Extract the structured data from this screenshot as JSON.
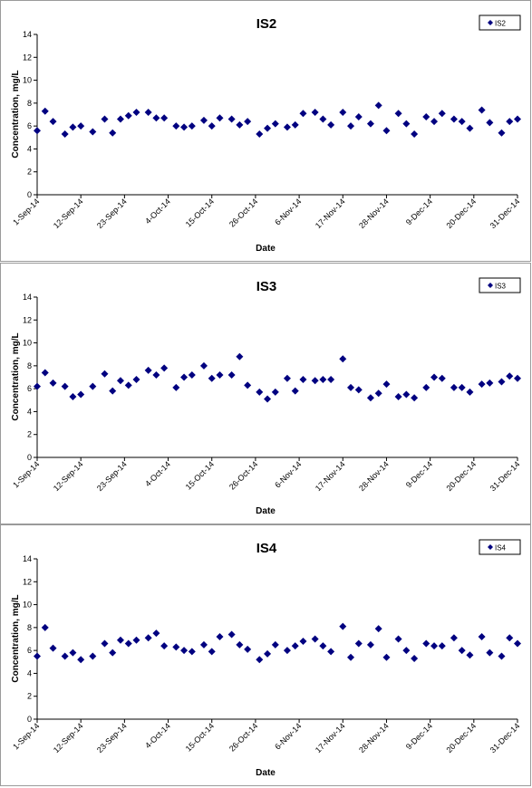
{
  "chart_data": [
    {
      "type": "scatter",
      "title": "IS2",
      "xlabel": "Date",
      "ylabel": "Concentration, mg/L",
      "ylim": [
        0,
        14
      ],
      "yticks": [
        0,
        2,
        4,
        6,
        8,
        10,
        12,
        14
      ],
      "xticks": [
        "1-Sep-14",
        "12-Sep-14",
        "23-Sep-14",
        "4-Oct-14",
        "15-Oct-14",
        "26-Oct-14",
        "6-Nov-14",
        "17-Nov-14",
        "28-Nov-14",
        "9-Dec-14",
        "20-Dec-14",
        "31-Dec-14"
      ],
      "xlim": [
        "2014-09-01",
        "2014-12-31"
      ],
      "grid": false,
      "legend": "top-right",
      "series": [
        {
          "name": "IS2",
          "color": "#000080",
          "x": [
            "2014-09-01",
            "2014-09-03",
            "2014-09-05",
            "2014-09-08",
            "2014-09-10",
            "2014-09-12",
            "2014-09-15",
            "2014-09-18",
            "2014-09-20",
            "2014-09-22",
            "2014-09-24",
            "2014-09-26",
            "2014-09-29",
            "2014-10-01",
            "2014-10-03",
            "2014-10-06",
            "2014-10-08",
            "2014-10-10",
            "2014-10-13",
            "2014-10-15",
            "2014-10-17",
            "2014-10-20",
            "2014-10-22",
            "2014-10-24",
            "2014-10-27",
            "2014-10-29",
            "2014-10-31",
            "2014-11-03",
            "2014-11-05",
            "2014-11-07",
            "2014-11-10",
            "2014-11-12",
            "2014-11-14",
            "2014-11-17",
            "2014-11-19",
            "2014-11-21",
            "2014-11-24",
            "2014-11-26",
            "2014-11-28",
            "2014-12-01",
            "2014-12-03",
            "2014-12-05",
            "2014-12-08",
            "2014-12-10",
            "2014-12-12",
            "2014-12-15",
            "2014-12-17",
            "2014-12-19",
            "2014-12-22",
            "2014-12-24",
            "2014-12-27",
            "2014-12-29",
            "2014-12-31"
          ],
          "values": [
            5.6,
            7.3,
            6.4,
            5.3,
            5.9,
            6.0,
            5.5,
            6.6,
            5.4,
            6.6,
            6.9,
            7.2,
            7.2,
            6.7,
            6.7,
            6.0,
            5.9,
            6.0,
            6.5,
            6.0,
            6.7,
            6.6,
            6.1,
            6.4,
            5.3,
            5.8,
            6.2,
            5.9,
            6.1,
            7.1,
            7.2,
            6.6,
            6.1,
            7.2,
            6.0,
            6.8,
            6.2,
            7.8,
            5.6,
            7.1,
            6.2,
            5.3,
            6.8,
            6.4,
            7.1,
            6.6,
            6.4,
            5.8,
            7.4,
            6.3,
            5.4,
            6.4,
            6.6
          ]
        }
      ]
    },
    {
      "type": "scatter",
      "title": "IS3",
      "xlabel": "Date",
      "ylabel": "Concentration, mg/L",
      "ylim": [
        0,
        14
      ],
      "yticks": [
        0,
        2,
        4,
        6,
        8,
        10,
        12,
        14
      ],
      "xticks": [
        "1-Sep-14",
        "12-Sep-14",
        "23-Sep-14",
        "4-Oct-14",
        "15-Oct-14",
        "26-Oct-14",
        "6-Nov-14",
        "17-Nov-14",
        "28-Nov-14",
        "9-Dec-14",
        "20-Dec-14",
        "31-Dec-14"
      ],
      "xlim": [
        "2014-09-01",
        "2014-12-31"
      ],
      "grid": false,
      "legend": "top-right",
      "series": [
        {
          "name": "IS3",
          "color": "#000080",
          "x": [
            "2014-09-01",
            "2014-09-03",
            "2014-09-05",
            "2014-09-08",
            "2014-09-10",
            "2014-09-12",
            "2014-09-15",
            "2014-09-18",
            "2014-09-20",
            "2014-09-22",
            "2014-09-24",
            "2014-09-26",
            "2014-09-29",
            "2014-10-01",
            "2014-10-03",
            "2014-10-06",
            "2014-10-08",
            "2014-10-10",
            "2014-10-13",
            "2014-10-15",
            "2014-10-17",
            "2014-10-20",
            "2014-10-22",
            "2014-10-24",
            "2014-10-27",
            "2014-10-29",
            "2014-10-31",
            "2014-11-03",
            "2014-11-05",
            "2014-11-07",
            "2014-11-10",
            "2014-11-12",
            "2014-11-14",
            "2014-11-17",
            "2014-11-19",
            "2014-11-21",
            "2014-11-24",
            "2014-11-26",
            "2014-11-28",
            "2014-12-01",
            "2014-12-03",
            "2014-12-05",
            "2014-12-08",
            "2014-12-10",
            "2014-12-12",
            "2014-12-15",
            "2014-12-17",
            "2014-12-19",
            "2014-12-22",
            "2014-12-24",
            "2014-12-27",
            "2014-12-29",
            "2014-12-31"
          ],
          "values": [
            6.2,
            7.4,
            6.5,
            6.2,
            5.3,
            5.5,
            6.2,
            7.3,
            5.8,
            6.7,
            6.3,
            6.8,
            7.6,
            7.2,
            7.8,
            6.1,
            7.0,
            7.2,
            8.0,
            6.9,
            7.2,
            7.2,
            8.8,
            6.3,
            5.7,
            5.1,
            5.7,
            6.9,
            5.8,
            6.8,
            6.7,
            6.8,
            6.8,
            8.6,
            6.1,
            5.9,
            5.2,
            5.6,
            6.4,
            5.3,
            5.5,
            5.2,
            6.1,
            7.0,
            6.9,
            6.1,
            6.1,
            5.7,
            6.4,
            6.5,
            6.6,
            7.1,
            6.9
          ]
        }
      ]
    },
    {
      "type": "scatter",
      "title": "IS4",
      "xlabel": "Date",
      "ylabel": "Concentration, mg/L",
      "ylim": [
        0,
        14
      ],
      "yticks": [
        0,
        2,
        4,
        6,
        8,
        10,
        12,
        14
      ],
      "xticks": [
        "1-Sep-14",
        "12-Sep-14",
        "23-Sep-14",
        "4-Oct-14",
        "15-Oct-14",
        "26-Oct-14",
        "6-Nov-14",
        "17-Nov-14",
        "28-Nov-14",
        "9-Dec-14",
        "20-Dec-14",
        "31-Dec-14"
      ],
      "xlim": [
        "2014-09-01",
        "2014-12-31"
      ],
      "grid": false,
      "legend": "top-right",
      "series": [
        {
          "name": "IS4",
          "color": "#000080",
          "x": [
            "2014-09-01",
            "2014-09-03",
            "2014-09-05",
            "2014-09-08",
            "2014-09-10",
            "2014-09-12",
            "2014-09-15",
            "2014-09-18",
            "2014-09-20",
            "2014-09-22",
            "2014-09-24",
            "2014-09-26",
            "2014-09-29",
            "2014-10-01",
            "2014-10-03",
            "2014-10-06",
            "2014-10-08",
            "2014-10-10",
            "2014-10-13",
            "2014-10-15",
            "2014-10-17",
            "2014-10-20",
            "2014-10-22",
            "2014-10-24",
            "2014-10-27",
            "2014-10-29",
            "2014-10-31",
            "2014-11-03",
            "2014-11-05",
            "2014-11-07",
            "2014-11-10",
            "2014-11-12",
            "2014-11-14",
            "2014-11-17",
            "2014-11-19",
            "2014-11-21",
            "2014-11-24",
            "2014-11-26",
            "2014-11-28",
            "2014-12-01",
            "2014-12-03",
            "2014-12-05",
            "2014-12-08",
            "2014-12-10",
            "2014-12-12",
            "2014-12-15",
            "2014-12-17",
            "2014-12-19",
            "2014-12-22",
            "2014-12-24",
            "2014-12-27",
            "2014-12-29",
            "2014-12-31"
          ],
          "values": [
            5.5,
            8.0,
            6.2,
            5.5,
            5.8,
            5.2,
            5.5,
            6.6,
            5.8,
            6.9,
            6.6,
            6.9,
            7.1,
            7.5,
            6.4,
            6.3,
            6.0,
            5.9,
            6.5,
            5.9,
            7.2,
            7.4,
            6.5,
            6.1,
            5.2,
            5.7,
            6.5,
            6.0,
            6.4,
            6.8,
            7.0,
            6.4,
            5.9,
            8.1,
            5.4,
            6.6,
            6.5,
            7.9,
            5.4,
            7.0,
            6.0,
            5.3,
            6.6,
            6.4,
            6.4,
            7.1,
            6.0,
            5.6,
            7.2,
            5.8,
            5.5,
            7.1,
            6.6
          ]
        }
      ]
    }
  ]
}
